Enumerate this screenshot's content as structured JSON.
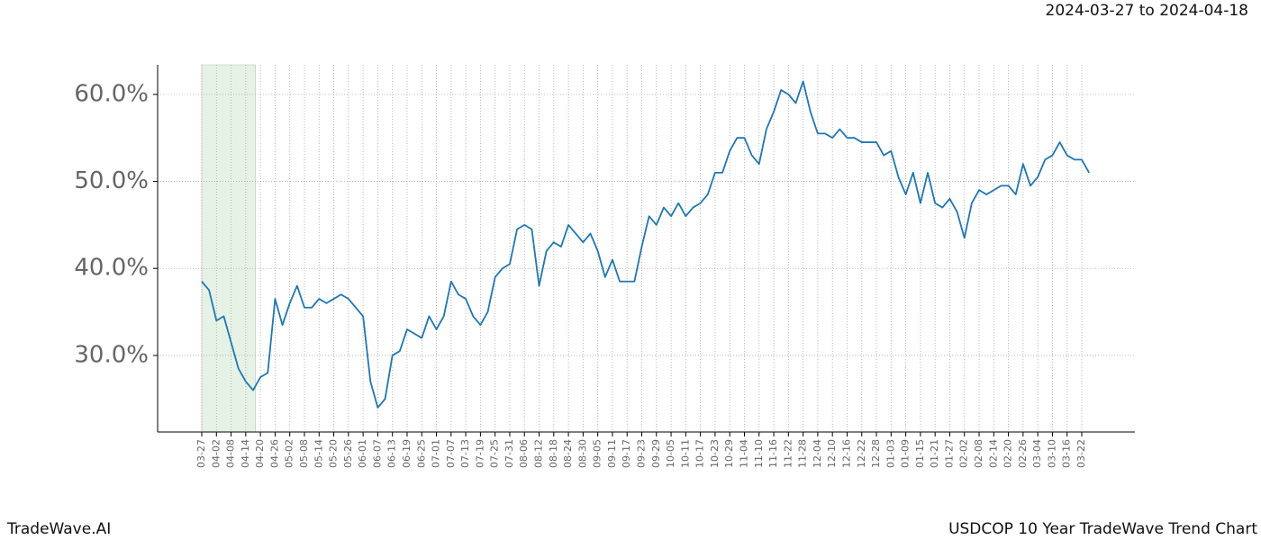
{
  "chart_data": {
    "type": "line",
    "title": "2024-03-27 to 2024-04-18",
    "footer_left": "TradeWave.AI",
    "footer_right": "USDCOP 10 Year TradeWave Trend Chart",
    "x": [
      "03-27",
      "03-30",
      "04-02",
      "04-05",
      "04-08",
      "04-11",
      "04-14",
      "04-17",
      "04-20",
      "04-23",
      "04-26",
      "04-29",
      "05-02",
      "05-05",
      "05-08",
      "05-11",
      "05-14",
      "05-17",
      "05-20",
      "05-23",
      "05-26",
      "05-29",
      "06-01",
      "06-04",
      "06-07",
      "06-10",
      "06-13",
      "06-16",
      "06-19",
      "06-22",
      "06-25",
      "06-28",
      "07-01",
      "07-04",
      "07-07",
      "07-10",
      "07-13",
      "07-16",
      "07-19",
      "07-22",
      "07-25",
      "07-28",
      "07-31",
      "08-03",
      "08-06",
      "08-09",
      "08-12",
      "08-15",
      "08-18",
      "08-21",
      "08-24",
      "08-27",
      "08-30",
      "09-02",
      "09-05",
      "09-08",
      "09-11",
      "09-14",
      "09-17",
      "09-20",
      "09-23",
      "09-26",
      "09-29",
      "10-02",
      "10-05",
      "10-08",
      "10-11",
      "10-14",
      "10-17",
      "10-20",
      "10-23",
      "10-26",
      "10-29",
      "11-01",
      "11-04",
      "11-07",
      "11-10",
      "11-13",
      "11-16",
      "11-19",
      "11-22",
      "11-25",
      "11-28",
      "12-01",
      "12-04",
      "12-07",
      "12-10",
      "12-13",
      "12-16",
      "12-19",
      "12-22",
      "12-25",
      "12-28",
      "12-31",
      "01-03",
      "01-06",
      "01-09",
      "01-12",
      "01-15",
      "01-18",
      "01-21",
      "01-24",
      "01-27",
      "01-30",
      "02-02",
      "02-05",
      "02-08",
      "02-11",
      "02-14",
      "02-17",
      "02-20",
      "02-23",
      "02-26",
      "03-01",
      "03-04",
      "03-07",
      "03-10",
      "03-13",
      "03-16",
      "03-19",
      "03-22",
      "03-25"
    ],
    "values": [
      38.5,
      37.5,
      34,
      34.5,
      31.5,
      28.5,
      27,
      26,
      27.5,
      28,
      36.5,
      33.5,
      36,
      38,
      35.5,
      35.5,
      36.5,
      36,
      36.5,
      37,
      36.5,
      35.5,
      34.5,
      27,
      24,
      25,
      30,
      30.5,
      33,
      32.5,
      32,
      34.5,
      33,
      34.5,
      38.5,
      37,
      36.5,
      34.5,
      33.5,
      35,
      39,
      40,
      40.5,
      44.5,
      45,
      44.5,
      38,
      42,
      43,
      42.5,
      45,
      44,
      43,
      44,
      42,
      39,
      41,
      38.5,
      38.5,
      38.5,
      42.5,
      46,
      45,
      47,
      46,
      47.5,
      46,
      47,
      47.5,
      48.5,
      51,
      51,
      53.5,
      55,
      55,
      53,
      52,
      56,
      58,
      60.5,
      60,
      59,
      61.5,
      58,
      55.5,
      55.5,
      55,
      56,
      55,
      55,
      54.5,
      54.5,
      54.5,
      53,
      53.5,
      50.5,
      48.5,
      51,
      47.5,
      51,
      47.5,
      47,
      48,
      46.5,
      43.5,
      47.5,
      49,
      48.5,
      49,
      49.5,
      49.5,
      48.5,
      52,
      49.5,
      50.5,
      52.5,
      53,
      54.5,
      53,
      52.5,
      52.5,
      51
    ],
    "color": "#1f77b4",
    "highlight": [
      "03-27",
      "04-18"
    ],
    "highlight_color": "#e6f2e6",
    "ylim": [
      21.2,
      63.4
    ],
    "yticks": [
      {
        "value": 30,
        "label": "30.0%"
      },
      {
        "value": 40,
        "label": "40.0%"
      },
      {
        "value": 50,
        "label": "50.0%"
      },
      {
        "value": 60,
        "label": "60.0%"
      }
    ],
    "xticks": [
      "03-27",
      "04-02",
      "04-08",
      "04-14",
      "04-20",
      "04-26",
      "05-02",
      "05-08",
      "05-14",
      "05-20",
      "05-26",
      "06-01",
      "06-07",
      "06-13",
      "06-19",
      "06-25",
      "07-01",
      "07-07",
      "07-13",
      "07-19",
      "07-25",
      "07-31",
      "08-06",
      "08-12",
      "08-18",
      "08-24",
      "08-30",
      "09-05",
      "09-11",
      "09-17",
      "09-23",
      "09-29",
      "10-05",
      "10-11",
      "10-17",
      "10-23",
      "10-29",
      "11-04",
      "11-10",
      "11-16",
      "11-22",
      "11-28",
      "12-04",
      "12-10",
      "12-16",
      "12-22",
      "12-28",
      "01-03",
      "01-09",
      "01-15",
      "01-21",
      "01-27",
      "02-02",
      "02-08",
      "02-14",
      "02-20",
      "02-26",
      "03-04",
      "03-10",
      "03-16",
      "03-22"
    ],
    "grid": true
  }
}
